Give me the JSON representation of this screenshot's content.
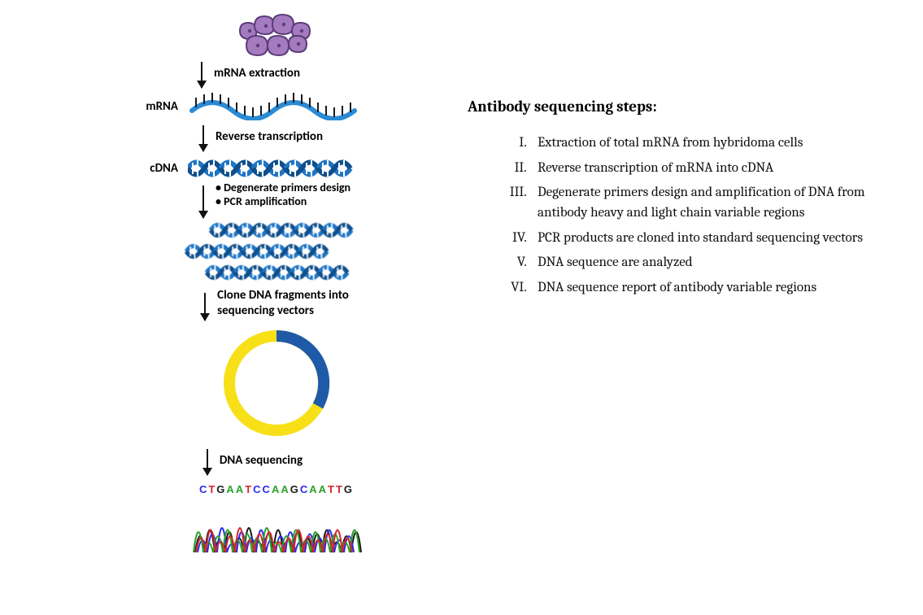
{
  "diagram": {
    "colors": {
      "cell_fill": "#a47bbf",
      "cell_stroke": "#5b3c7a",
      "dna_blue": "#1f75c4",
      "dna_darkblue": "#0f4f8c",
      "mrna_blue": "#2a8bd6",
      "tick_black": "#1a1a1a",
      "plasmid_yellow": "#f7e017",
      "plasmid_blue": "#1e5aa8",
      "seq_A": "#2aa02a",
      "seq_C": "#2a2af0",
      "seq_G": "#1a1a1a",
      "seq_T": "#d62728"
    },
    "labels": {
      "mRNA_extraction": "mRNA extraction",
      "mRNA": "mRNA",
      "reverse_transcription": "Reverse transcription",
      "cDNA": "cDNA",
      "primers_design": "Degenerate primers design",
      "pcr_amplification": "PCR amplification",
      "clone_fragments": "Clone DNA fragments into\nsequencing vectors",
      "dna_sequencing": "DNA sequencing"
    },
    "sequence": [
      "C",
      "T",
      "G",
      "A",
      "A",
      "T",
      "C",
      "C",
      "A",
      "A",
      "G",
      "C",
      "A",
      "A",
      "T",
      "T",
      "G"
    ],
    "chromatogram_colors": [
      "#1a1a1a",
      "#2a2af0",
      "#2aa02a",
      "#d62728"
    ]
  },
  "text_panel": {
    "title": "Antibody sequencing steps:",
    "steps": [
      "Extraction of total mRNA from hybridoma cells",
      "Reverse transcription of mRNA into cDNA",
      "Degenerate primers design and amplification of DNA from antibody heavy and light chain variable regions",
      "PCR products are cloned into standard sequencing vectors",
      "DNA sequence are analyzed",
      "DNA sequence report of antibody variable regions"
    ]
  }
}
